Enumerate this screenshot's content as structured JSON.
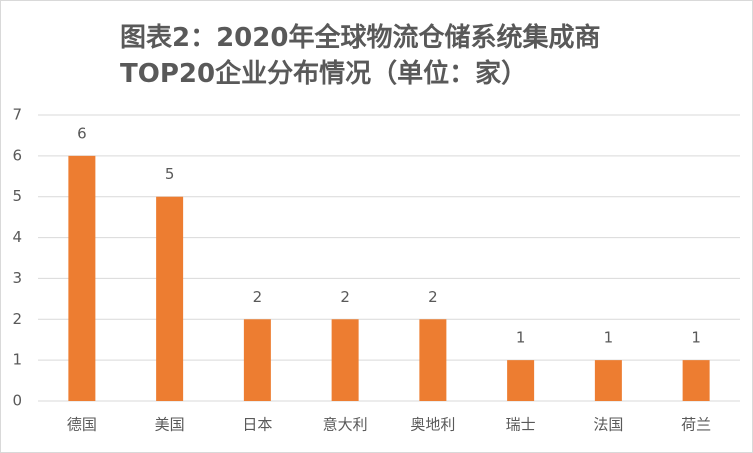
{
  "chart_data": {
    "type": "bar",
    "title": [
      "图表2：2020年全球物流仓储系统集成商",
      "TOP20企业分布情况（单位：家）"
    ],
    "categories": [
      "德国",
      "美国",
      "日本",
      "意大利",
      "奥地利",
      "瑞士",
      "法国",
      "荷兰"
    ],
    "values": [
      6,
      5,
      2,
      2,
      2,
      1,
      1,
      1
    ],
    "color": "#ed7d31",
    "ylim": [
      0,
      7
    ],
    "yticks": [
      0,
      1,
      2,
      3,
      4,
      5,
      6,
      7
    ],
    "grid": true
  }
}
